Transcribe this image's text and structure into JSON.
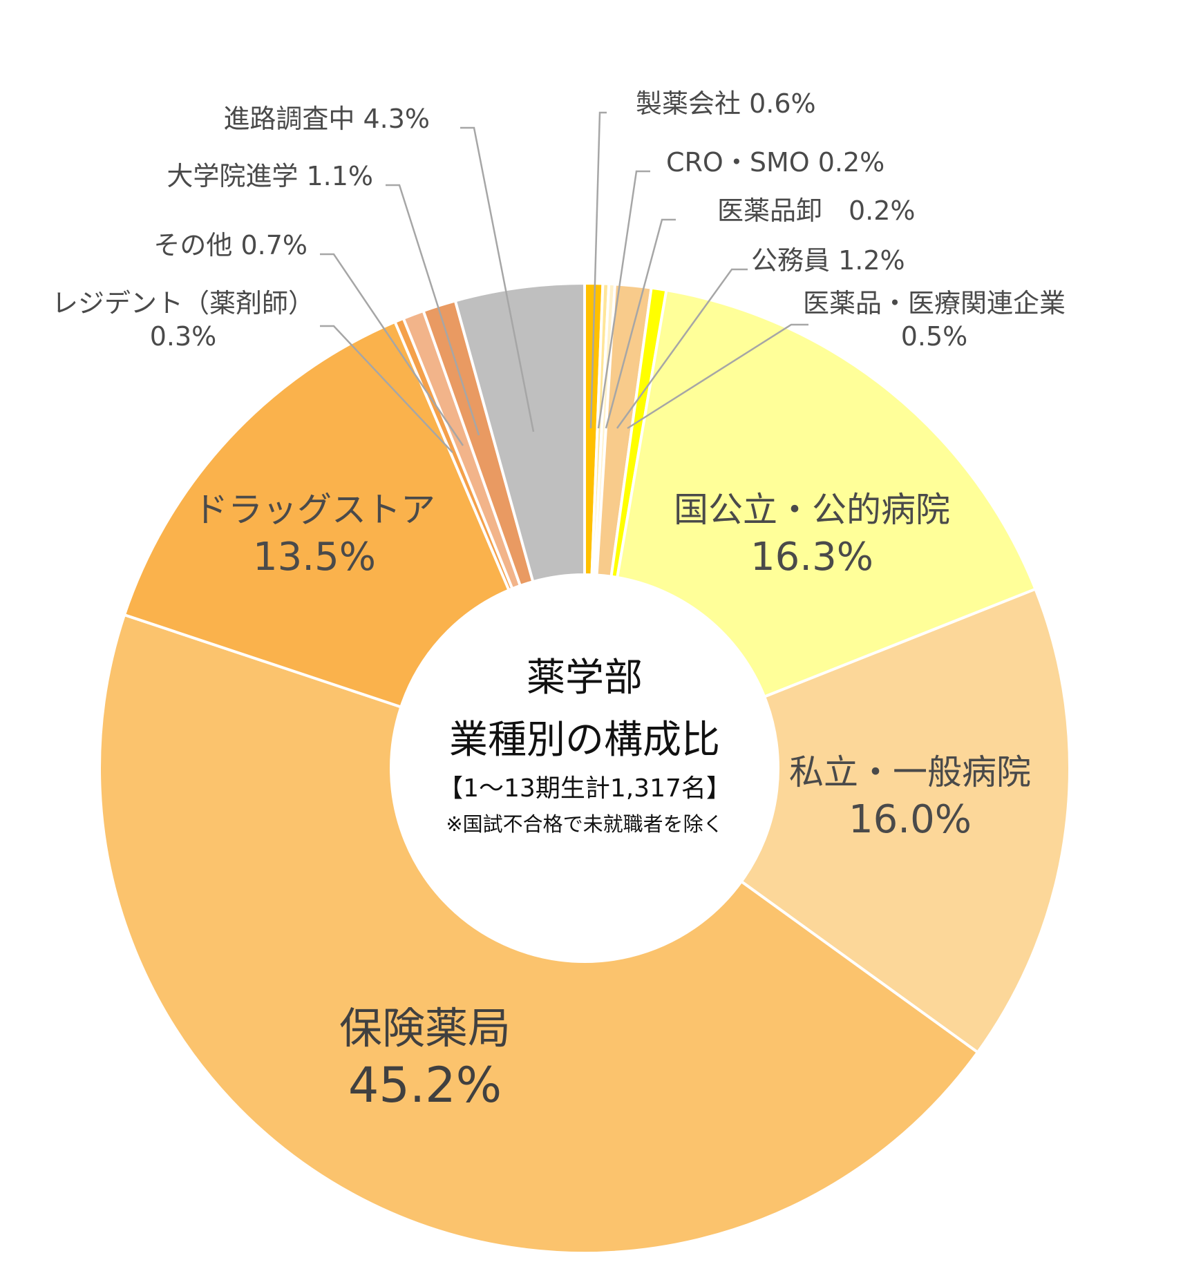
{
  "chart_data": {
    "type": "pie",
    "style": "donut",
    "center_text": {
      "line1": "薬学部",
      "line2": "業種別の構成比",
      "line3": "【1～13期生計1,317名】",
      "line4": "※国試不合格で未就職者を除く"
    },
    "slices": [
      {
        "name": "製薬会社",
        "value": 0.6,
        "label": "製薬会社 0.6%",
        "color": "#FFC000"
      },
      {
        "name": "CRO・SMO",
        "value": 0.2,
        "label": "CRO・SMO 0.2%",
        "color": "#FFE699"
      },
      {
        "name": "医薬品卸",
        "value": 0.2,
        "label": "医薬品卸　0.2%",
        "color": "#FFF2CC"
      },
      {
        "name": "公務員",
        "value": 1.2,
        "label": "公務員 1.2%",
        "color": "#F8CB8B"
      },
      {
        "name": "医薬品・医療関連企業",
        "value": 0.5,
        "label": "医薬品・医療関連企業",
        "label2": "0.5%",
        "color": "#FFFF00"
      },
      {
        "name": "国公立・公的病院",
        "value": 16.3,
        "label": "国公立・公的病院",
        "label2": "16.3%",
        "color": "#FFFF99"
      },
      {
        "name": "私立・一般病院",
        "value": 16.0,
        "label": "私立・一般病院",
        "label2": "16.0%",
        "color": "#FCD799"
      },
      {
        "name": "保険薬局",
        "value": 45.2,
        "label": "保険薬局",
        "label2": "45.2%",
        "color": "#FBC36D"
      },
      {
        "name": "ドラッグストア",
        "value": 13.5,
        "label": "ドラッグストア",
        "label2": "13.5%",
        "color": "#FAB24C"
      },
      {
        "name": "レジデント（薬剤師）",
        "value": 0.3,
        "label": "レジデント（薬剤師）",
        "label2": "0.3%",
        "color": "#F4A04A"
      },
      {
        "name": "その他",
        "value": 0.7,
        "label": "その他 0.7%",
        "color": "#F2B48A"
      },
      {
        "name": "大学院進学",
        "value": 1.1,
        "label": "大学院進学 1.1%",
        "color": "#E99A62"
      },
      {
        "name": "進路調査中",
        "value": 4.3,
        "label": "進路調査中 4.3%",
        "color": "#BFBFBF"
      }
    ]
  }
}
